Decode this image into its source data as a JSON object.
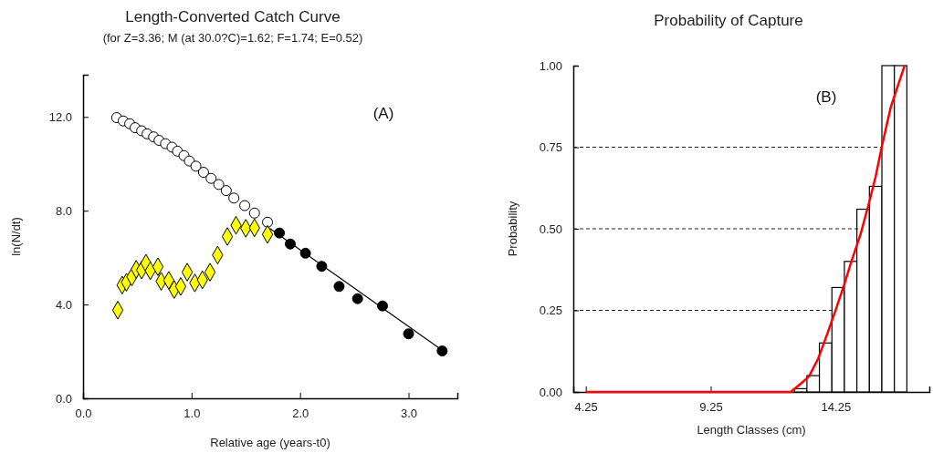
{
  "chart_data": [
    {
      "type": "scatter",
      "title": "Length-Converted Catch Curve",
      "subtitle": "(for Z=3.36; M (at 30.0?C)=1.62; F=1.74; E=0.52)",
      "xlabel": "Relative age (years-t0)",
      "ylabel": "ln(N/dt)",
      "annotations": [
        "(A)"
      ],
      "xlim": [
        0,
        3.45
      ],
      "ylim": [
        0,
        13.8
      ],
      "xticks": [
        {
          "value": 0,
          "label": "0.0"
        },
        {
          "value": 1,
          "label": "1.0"
        },
        {
          "value": 2,
          "label": "2.0"
        },
        {
          "value": 3,
          "label": "3.0"
        }
      ],
      "yticks": [
        {
          "value": 0,
          "label": "0.0"
        },
        {
          "value": 4,
          "label": "4.0"
        },
        {
          "value": 8,
          "label": "8.0"
        },
        {
          "value": 12,
          "label": "12.0"
        }
      ],
      "series": [
        {
          "color": "#ffffff",
          "marker": "circle",
          "x": [
            0.31,
            0.37,
            0.43,
            0.48,
            0.54,
            0.59,
            0.65,
            0.7,
            0.76,
            0.82,
            0.87,
            0.93,
            0.98,
            1.04,
            1.11,
            1.18,
            1.25,
            1.32,
            1.39,
            1.49,
            1.58,
            1.7
          ],
          "values": [
            11.97,
            11.83,
            11.71,
            11.54,
            11.41,
            11.28,
            11.15,
            11.0,
            10.86,
            10.71,
            10.54,
            10.35,
            10.12,
            9.9,
            9.64,
            9.38,
            9.12,
            8.86,
            8.54,
            8.22,
            7.9,
            7.51
          ]
        },
        {
          "color": "#ffff00",
          "marker": "diamond",
          "x": [
            0.32,
            0.36,
            0.4,
            0.45,
            0.49,
            0.54,
            0.58,
            0.62,
            0.69,
            0.72,
            0.79,
            0.84,
            0.9,
            0.96,
            1.03,
            1.1,
            1.17,
            1.24,
            1.33,
            1.41,
            1.5,
            1.58,
            1.7
          ],
          "values": [
            3.76,
            4.83,
            4.95,
            5.18,
            5.5,
            5.47,
            5.76,
            5.44,
            5.61,
            4.99,
            5.03,
            4.64,
            4.77,
            5.38,
            4.92,
            5.05,
            5.38,
            6.11,
            6.9,
            7.38,
            7.25,
            7.27,
            6.99
          ]
        },
        {
          "color": "#000000",
          "marker": "circle",
          "x": [
            1.81,
            1.91,
            2.05,
            2.2,
            2.36,
            2.53,
            2.76,
            3.0,
            3.31
          ],
          "values": [
            7.05,
            6.58,
            6.19,
            5.63,
            4.77,
            4.25,
            3.94,
            2.75,
            2.02
          ]
        },
        {
          "type": "line",
          "color": "#000000",
          "marker": "none",
          "x": [
            1.72,
            3.34
          ],
          "values": [
            7.25,
            1.95
          ]
        }
      ]
    },
    {
      "type": "histogram",
      "title": "Probability of Capture",
      "xlabel": "Length Classes (cm)",
      "ylabel": "Probability",
      "annotations": [
        "(B)"
      ],
      "xlim": [
        3.75,
        18.0
      ],
      "ylim": [
        0,
        1
      ],
      "xticks": [
        4.25,
        9.25,
        14.25
      ],
      "yticks": [
        {
          "value": 0,
          "label": "0.00"
        },
        {
          "value": 0.25,
          "label": "0.25"
        },
        {
          "value": 0.5,
          "label": "0.50"
        },
        {
          "value": 0.75,
          "label": "0.75"
        },
        {
          "value": 1,
          "label": "1.00"
        }
      ],
      "bins": [
        12.6,
        13.1,
        13.6,
        14.1,
        14.6,
        15.1,
        15.6,
        16.1,
        16.6,
        17.1
      ],
      "values": [
        0.01,
        0.05,
        0.15,
        0.32,
        0.4,
        0.56,
        0.63,
        1.0,
        1.0
      ],
      "color": "#ffffff",
      "ref_lines": [
        {
          "axis": "y",
          "value": 0.25,
          "line_style": "dashed"
        },
        {
          "axis": "y",
          "value": 0.5,
          "line_style": "dashed"
        },
        {
          "axis": "y",
          "value": 0.75,
          "line_style": "dashed"
        }
      ],
      "series": [
        {
          "type": "line",
          "color": "#ff0000",
          "x": [
            4.25,
            12.45,
            12.82,
            13.18,
            13.55,
            13.91,
            14.21,
            14.58,
            14.88,
            15.25,
            15.61,
            15.85,
            16.1,
            16.46,
            17.01
          ],
          "values": [
            0,
            0,
            0.023,
            0.047,
            0.102,
            0.177,
            0.242,
            0.326,
            0.4,
            0.484,
            0.586,
            0.66,
            0.753,
            0.874,
            1.0
          ]
        }
      ]
    }
  ]
}
